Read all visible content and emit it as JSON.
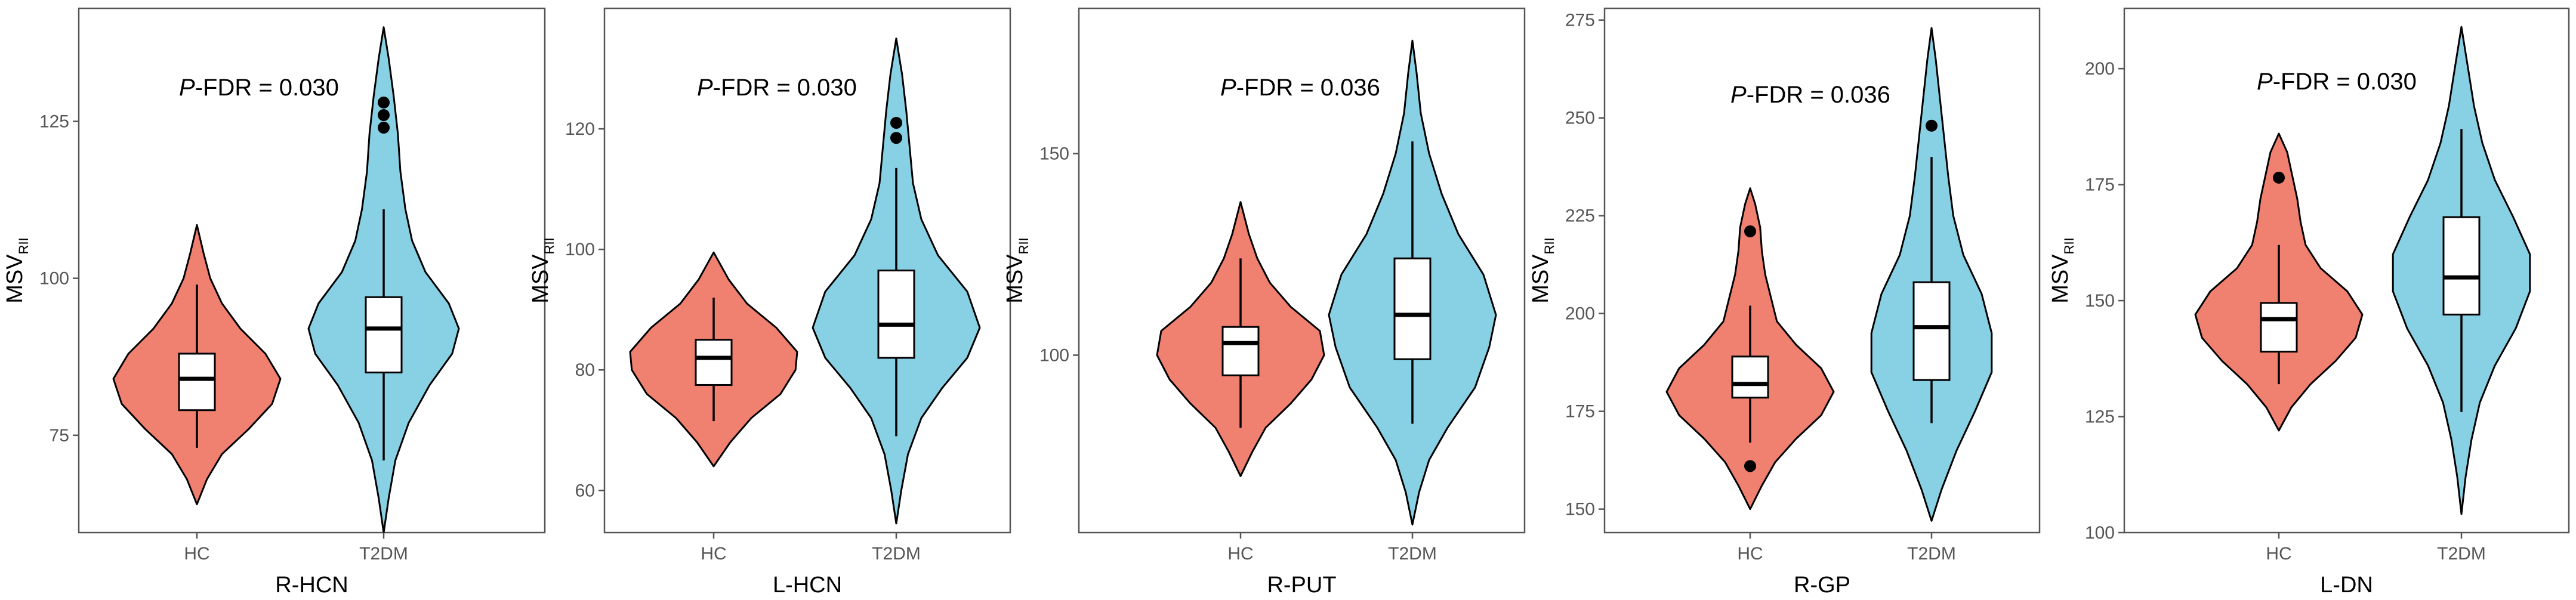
{
  "colors": {
    "hc": "#f08070",
    "t2dm": "#88d0e4",
    "box": "#ffffff",
    "stroke": "#000000",
    "axis": "#555555"
  },
  "chart_data": [
    {
      "type": "violin",
      "xlabel": "R-HCN",
      "ylabel_main": "MSV",
      "ylabel_sub": "RII",
      "annotation_p": "P",
      "annotation_rest": "-FDR = 0.030",
      "categories": [
        "HC",
        "T2DM"
      ],
      "yticks": [
        75,
        100,
        125
      ],
      "ylim": [
        59.5,
        143
      ],
      "groups": [
        {
          "name": "HC",
          "min": 73,
          "q1": 79,
          "median": 84,
          "q3": 88,
          "max": 99,
          "outliers": [],
          "density": [
            [
              64,
              0.0
            ],
            [
              68,
              0.12
            ],
            [
              72,
              0.3
            ],
            [
              76,
              0.62
            ],
            [
              80,
              0.9
            ],
            [
              84,
              1.0
            ],
            [
              88,
              0.82
            ],
            [
              92,
              0.52
            ],
            [
              96,
              0.3
            ],
            [
              100,
              0.16
            ],
            [
              104,
              0.08
            ],
            [
              108.5,
              0.0
            ]
          ]
        },
        {
          "name": "T2DM",
          "min": 71,
          "q1": 85,
          "median": 92,
          "q3": 97,
          "max": 111,
          "outliers": [
            124,
            126,
            128
          ],
          "density": [
            [
              59.5,
              0.0
            ],
            [
              65,
              0.06
            ],
            [
              71,
              0.14
            ],
            [
              77,
              0.3
            ],
            [
              83,
              0.55
            ],
            [
              88,
              0.82
            ],
            [
              92,
              0.9
            ],
            [
              96,
              0.78
            ],
            [
              101,
              0.5
            ],
            [
              106,
              0.34
            ],
            [
              111,
              0.26
            ],
            [
              117,
              0.2
            ],
            [
              123,
              0.17
            ],
            [
              129,
              0.12
            ],
            [
              135,
              0.06
            ],
            [
              140,
              0.0
            ]
          ]
        }
      ]
    },
    {
      "type": "violin",
      "xlabel": "L-HCN",
      "ylabel_main": "MSV",
      "ylabel_sub": "RII",
      "annotation_p": "P",
      "annotation_rest": "-FDR = 0.030",
      "categories": [
        "HC",
        "T2DM"
      ],
      "yticks": [
        60,
        80,
        100,
        120
      ],
      "ylim": [
        53,
        140
      ],
      "groups": [
        {
          "name": "HC",
          "min": 71.5,
          "q1": 77.5,
          "median": 82,
          "q3": 85,
          "max": 92,
          "outliers": [],
          "density": [
            [
              64,
              0.0
            ],
            [
              68,
              0.2
            ],
            [
              72,
              0.45
            ],
            [
              76,
              0.8
            ],
            [
              80,
              0.98
            ],
            [
              83,
              1.0
            ],
            [
              87,
              0.75
            ],
            [
              91,
              0.4
            ],
            [
              95,
              0.18
            ],
            [
              99.5,
              0.0
            ]
          ]
        },
        {
          "name": "T2DM",
          "min": 69,
          "q1": 82,
          "median": 87.5,
          "q3": 96.5,
          "max": 113.5,
          "outliers": [
            118.5,
            121
          ],
          "density": [
            [
              54.5,
              0.0
            ],
            [
              60,
              0.06
            ],
            [
              66,
              0.14
            ],
            [
              72,
              0.3
            ],
            [
              77,
              0.55
            ],
            [
              82,
              0.85
            ],
            [
              87,
              1.0
            ],
            [
              93,
              0.85
            ],
            [
              99,
              0.5
            ],
            [
              105,
              0.3
            ],
            [
              111,
              0.2
            ],
            [
              117,
              0.16
            ],
            [
              123,
              0.12
            ],
            [
              129,
              0.07
            ],
            [
              135,
              0.0
            ]
          ]
        }
      ]
    },
    {
      "type": "violin",
      "xlabel": "R-PUT",
      "ylabel_main": "MSV",
      "ylabel_sub": "RII",
      "annotation_p": "P",
      "annotation_rest": "-FDR = 0.036",
      "categories": [
        "HC",
        "T2DM"
      ],
      "yticks": [
        100,
        150
      ],
      "ylim": [
        56,
        186
      ],
      "groups": [
        {
          "name": "HC",
          "min": 82,
          "q1": 95,
          "median": 103,
          "q3": 107,
          "max": 124,
          "outliers": [],
          "density": [
            [
              70,
              0.0
            ],
            [
              76,
              0.14
            ],
            [
              82,
              0.3
            ],
            [
              88,
              0.6
            ],
            [
              94,
              0.85
            ],
            [
              100,
              1.0
            ],
            [
              106,
              0.95
            ],
            [
              112,
              0.6
            ],
            [
              118,
              0.35
            ],
            [
              124,
              0.2
            ],
            [
              130,
              0.1
            ],
            [
              138,
              0.0
            ]
          ]
        },
        {
          "name": "T2DM",
          "min": 83,
          "q1": 99,
          "median": 110,
          "q3": 124,
          "max": 153,
          "outliers": [],
          "density": [
            [
              58,
              0.0
            ],
            [
              66,
              0.08
            ],
            [
              74,
              0.2
            ],
            [
              82,
              0.42
            ],
            [
              92,
              0.75
            ],
            [
              102,
              0.92
            ],
            [
              110,
              1.0
            ],
            [
              120,
              0.85
            ],
            [
              130,
              0.55
            ],
            [
              140,
              0.35
            ],
            [
              150,
              0.2
            ],
            [
              160,
              0.1
            ],
            [
              170,
              0.05
            ],
            [
              178,
              0.0
            ]
          ]
        }
      ]
    },
    {
      "type": "violin",
      "xlabel": "R-GP",
      "ylabel_main": "MSV",
      "ylabel_sub": "RII",
      "annotation_p": "P",
      "annotation_rest": "-FDR = 0.036",
      "categories": [
        "HC",
        "T2DM"
      ],
      "yticks": [
        150,
        175,
        200,
        225,
        250,
        275
      ],
      "ylim": [
        144,
        278
      ],
      "groups": [
        {
          "name": "HC",
          "min": 167,
          "q1": 178.5,
          "median": 182,
          "q3": 189,
          "max": 202,
          "outliers": [
            161,
            221
          ],
          "density": [
            [
              150,
              0.0
            ],
            [
              156,
              0.14
            ],
            [
              162,
              0.3
            ],
            [
              168,
              0.55
            ],
            [
              174,
              0.85
            ],
            [
              180,
              1.0
            ],
            [
              186,
              0.85
            ],
            [
              192,
              0.55
            ],
            [
              198,
              0.32
            ],
            [
              204,
              0.25
            ],
            [
              210,
              0.18
            ],
            [
              216,
              0.14
            ],
            [
              222,
              0.12
            ],
            [
              228,
              0.06
            ],
            [
              232,
              0.0
            ]
          ]
        },
        {
          "name": "T2DM",
          "min": 172,
          "q1": 183,
          "median": 196.5,
          "q3": 208,
          "max": 240,
          "outliers": [
            248
          ],
          "density": [
            [
              147,
              0.0
            ],
            [
              155,
              0.12
            ],
            [
              165,
              0.3
            ],
            [
              175,
              0.52
            ],
            [
              185,
              0.72
            ],
            [
              195,
              0.72
            ],
            [
              205,
              0.6
            ],
            [
              215,
              0.38
            ],
            [
              225,
              0.26
            ],
            [
              235,
              0.2
            ],
            [
              245,
              0.15
            ],
            [
              255,
              0.1
            ],
            [
              265,
              0.05
            ],
            [
              273,
              0.0
            ]
          ]
        }
      ]
    },
    {
      "type": "violin",
      "xlabel": "L-DN",
      "ylabel_main": "MSV",
      "ylabel_sub": "RII",
      "annotation_p": "P",
      "annotation_rest": "-FDR = 0.030",
      "categories": [
        "HC",
        "T2DM"
      ],
      "yticks": [
        100,
        125,
        150,
        175,
        200
      ],
      "ylim": [
        100,
        213
      ],
      "groups": [
        {
          "name": "HC",
          "min": 132,
          "q1": 139,
          "median": 146,
          "q3": 149.5,
          "max": 162,
          "outliers": [
            176.5
          ],
          "density": [
            [
              122,
              0.0
            ],
            [
              127,
              0.15
            ],
            [
              132,
              0.38
            ],
            [
              137,
              0.68
            ],
            [
              142,
              0.92
            ],
            [
              147,
              1.0
            ],
            [
              152,
              0.82
            ],
            [
              157,
              0.5
            ],
            [
              162,
              0.32
            ],
            [
              167,
              0.26
            ],
            [
              172,
              0.22
            ],
            [
              177,
              0.16
            ],
            [
              182,
              0.1
            ],
            [
              186,
              0.0
            ]
          ]
        },
        {
          "name": "T2DM",
          "min": 126,
          "q1": 147,
          "median": 155,
          "q3": 168,
          "max": 187,
          "outliers": [],
          "density": [
            [
              104,
              0.0
            ],
            [
              112,
              0.05
            ],
            [
              120,
              0.12
            ],
            [
              128,
              0.22
            ],
            [
              136,
              0.4
            ],
            [
              144,
              0.65
            ],
            [
              152,
              0.82
            ],
            [
              160,
              0.82
            ],
            [
              168,
              0.62
            ],
            [
              176,
              0.4
            ],
            [
              184,
              0.25
            ],
            [
              192,
              0.15
            ],
            [
              200,
              0.08
            ],
            [
              209,
              0.0
            ]
          ]
        }
      ]
    }
  ]
}
